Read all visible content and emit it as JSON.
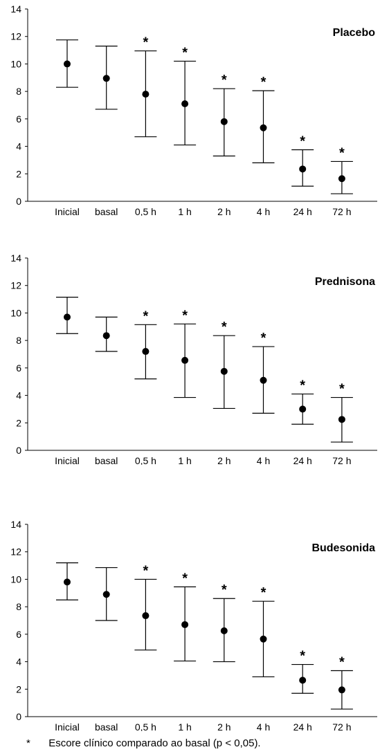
{
  "chart_data": [
    {
      "type": "scatter",
      "title": "Placebo",
      "categories": [
        "Inicial",
        "basal",
        "0,5 h",
        "1 h",
        "2 h",
        "4 h",
        "24 h",
        "72 h"
      ],
      "mean": [
        10.0,
        8.95,
        7.8,
        7.1,
        5.8,
        5.35,
        2.35,
        1.65
      ],
      "lower": [
        8.3,
        6.7,
        4.7,
        4.1,
        3.3,
        2.8,
        1.1,
        0.55
      ],
      "upper": [
        11.75,
        11.3,
        10.95,
        10.2,
        8.2,
        8.05,
        3.75,
        2.9
      ],
      "significant": [
        false,
        false,
        true,
        true,
        true,
        true,
        true,
        true
      ],
      "marker_label": "*",
      "ylim": [
        0,
        14
      ],
      "yticks": [
        "0",
        "2",
        "4",
        "6",
        "8",
        "10",
        "12",
        "14"
      ],
      "xlabel": "",
      "ylabel": ""
    },
    {
      "type": "scatter",
      "title": "Prednisona",
      "categories": [
        "Inicial",
        "basal",
        "0,5 h",
        "1 h",
        "2 h",
        "4 h",
        "24 h",
        "72 h"
      ],
      "mean": [
        9.7,
        8.35,
        7.2,
        6.55,
        5.75,
        5.1,
        3.0,
        2.25
      ],
      "lower": [
        8.5,
        7.2,
        5.2,
        3.85,
        3.05,
        2.7,
        1.9,
        0.6
      ],
      "upper": [
        11.15,
        9.7,
        9.15,
        9.2,
        8.35,
        7.55,
        4.1,
        3.85
      ],
      "significant": [
        false,
        false,
        true,
        true,
        true,
        true,
        true,
        true
      ],
      "marker_label": "*",
      "ylim": [
        0,
        14
      ],
      "yticks": [
        "0",
        "2",
        "4",
        "6",
        "8",
        "10",
        "12",
        "14"
      ],
      "xlabel": "",
      "ylabel": ""
    },
    {
      "type": "scatter",
      "title": "Budesonida",
      "categories": [
        "Inicial",
        "basal",
        "0,5 h",
        "1 h",
        "2 h",
        "4 h",
        "24 h",
        "72 h"
      ],
      "mean": [
        9.8,
        8.9,
        7.35,
        6.7,
        6.25,
        5.65,
        2.65,
        1.95
      ],
      "lower": [
        8.5,
        7.0,
        4.85,
        4.05,
        4.0,
        2.9,
        1.7,
        0.55
      ],
      "upper": [
        11.2,
        10.85,
        10.0,
        9.45,
        8.6,
        8.4,
        3.8,
        3.35
      ],
      "significant": [
        false,
        false,
        true,
        true,
        true,
        true,
        true,
        true
      ],
      "marker_label": "*",
      "ylim": [
        0,
        14
      ],
      "yticks": [
        "0",
        "2",
        "4",
        "6",
        "8",
        "10",
        "12",
        "14"
      ],
      "xlabel": "",
      "ylabel": ""
    }
  ],
  "footnote": {
    "symbol": "*",
    "text": "Escore clínico comparado ao basal (p < 0,05)."
  }
}
